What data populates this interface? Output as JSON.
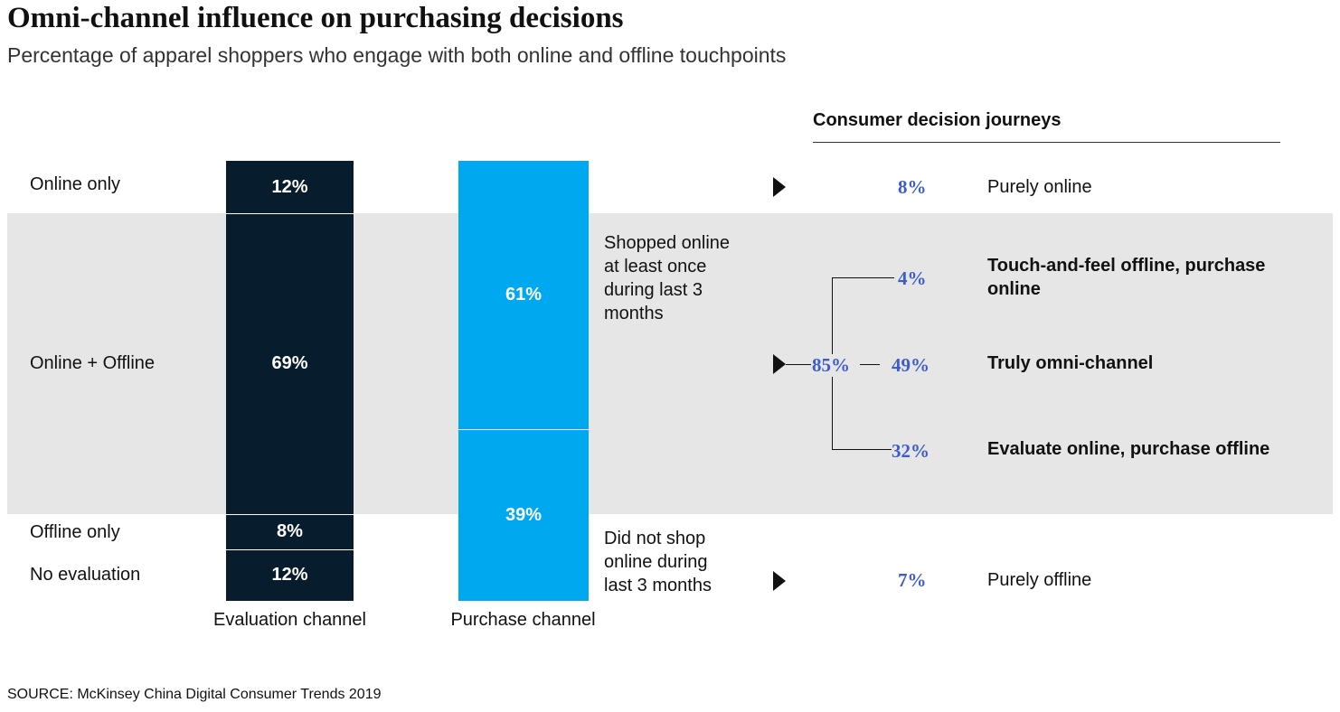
{
  "title": "Omni-channel influence on purchasing decisions",
  "subtitle": "Percentage of apparel shoppers who engage with both online and offline touchpoints",
  "chart_data": {
    "type": "bar",
    "subtype": "stacked-100",
    "bars": [
      {
        "name": "Evaluation channel",
        "segments": [
          {
            "label": "Online only",
            "value": 12,
            "text": "12%"
          },
          {
            "label": "Online + Offline",
            "value": 69,
            "text": "69%"
          },
          {
            "label": "Offline only",
            "value": 8,
            "text": "8%"
          },
          {
            "label": "No evaluation",
            "value": 12,
            "text": "12%"
          }
        ]
      },
      {
        "name": "Purchase channel",
        "segments": [
          {
            "label": "Shopped online at least once during last 3 months",
            "value": 61,
            "text": "61%"
          },
          {
            "label": "Did not shop online during last 3 months",
            "value": 39,
            "text": "39%"
          }
        ]
      }
    ],
    "colors": {
      "evaluation": "#071c2c",
      "purchase": "#00a8f0",
      "journey_pct": "#3d5ccc",
      "band": "#e6e6e6"
    }
  },
  "row_labels": {
    "online_only": "Online only",
    "online_offline": "Online + Offline",
    "offline_only": "Offline only",
    "no_evaluation": "No evaluation"
  },
  "purchase_notes": {
    "online": "Shopped online at least once during last 3 months",
    "offline": "Did not shop online during last 3 months"
  },
  "journeys": {
    "heading": "Consumer decision journeys",
    "purely_online": {
      "value": "8%",
      "label": "Purely online"
    },
    "omni_total": "85%",
    "touch_feel": {
      "value": "4%",
      "label": "Touch-and-feel offline, purchase online"
    },
    "truly_omni": {
      "value": "49%",
      "label": "Truly omni-channel"
    },
    "evaluate_online": {
      "value": "32%",
      "label": "Evaluate online, purchase offline"
    },
    "purely_offline": {
      "value": "7%",
      "label": "Purely offline"
    }
  },
  "source": "SOURCE: McKinsey China Digital Consumer Trends 2019"
}
